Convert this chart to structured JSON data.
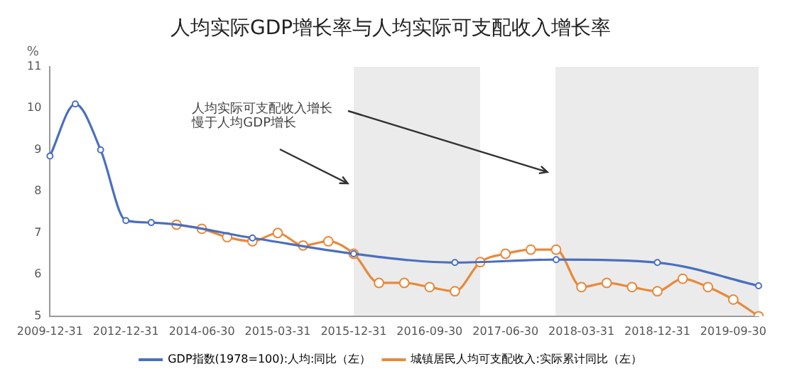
{
  "chart_data": {
    "type": "line",
    "title": "人均实际GDP增长率与人均实际可支配收入增长率",
    "ylabel": "%",
    "categories": [
      "2009-12-31",
      null,
      null,
      "2012-12-31",
      null,
      null,
      "2014-06-30",
      null,
      null,
      "2015-03-31",
      null,
      null,
      "2015-12-31",
      null,
      null,
      "2016-09-30",
      null,
      null,
      "2017-06-30",
      null,
      null,
      "2018-03-31",
      null,
      null,
      "2018-12-31",
      null,
      null,
      "2019-09-30",
      null
    ],
    "series": [
      {
        "name": "GDP指数(1978=100):人均:同比（左）",
        "color": "#4a6fbf",
        "values": [
          8.85,
          10.1,
          9.0,
          7.3,
          7.25,
          null,
          null,
          null,
          6.88,
          null,
          null,
          null,
          6.5,
          null,
          null,
          null,
          6.29,
          null,
          null,
          null,
          6.36,
          null,
          null,
          null,
          6.29,
          null,
          null,
          null,
          5.73
        ]
      },
      {
        "name": "城镇居民人均可支配收入:实际累计同比（左）",
        "color": "#e8893a",
        "values": [
          null,
          null,
          null,
          null,
          null,
          7.2,
          7.1,
          6.9,
          6.8,
          7.0,
          6.7,
          6.8,
          6.5,
          5.8,
          5.8,
          5.7,
          5.6,
          6.3,
          6.5,
          6.6,
          6.6,
          5.7,
          5.8,
          5.7,
          5.6,
          5.9,
          5.7,
          5.4,
          5.0
        ]
      }
    ],
    "ylim": [
      5,
      11
    ],
    "yticks": [
      5,
      6,
      7,
      8,
      9,
      10,
      11
    ],
    "grid": false,
    "legend": "bottom",
    "marker": "circle",
    "line_style": "solid",
    "annotations": [
      "人均实际可支配收入增长慢于人均GDP增长"
    ]
  }
}
